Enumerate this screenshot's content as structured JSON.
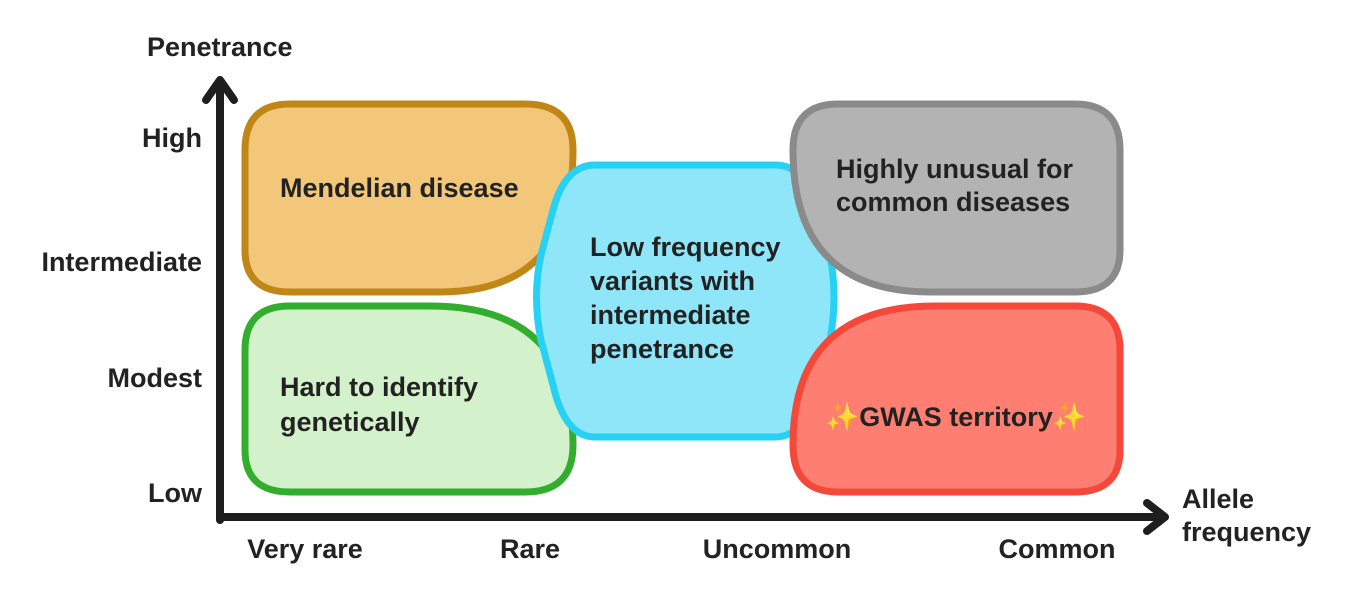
{
  "y_axis": {
    "title": "Penetrance",
    "ticks": [
      "High",
      "Intermediate",
      "Modest",
      "Low"
    ]
  },
  "x_axis": {
    "title_lines": [
      "Allele",
      "frequency"
    ],
    "ticks": [
      "Very rare",
      "Rare",
      "Uncommon",
      "Common"
    ]
  },
  "regions": {
    "mendelian": {
      "lines": [
        "Mendelian disease"
      ],
      "fill": "#f2c77a",
      "stroke": "#c08716"
    },
    "hard_to_identify": {
      "lines": [
        "Hard to identify",
        "genetically"
      ],
      "fill": "#d3f2cc",
      "stroke": "#33ad2e"
    },
    "low_frequency": {
      "lines": [
        "Low frequency",
        "variants with",
        "intermediate",
        "penetrance"
      ],
      "fill": "#8fe6f9",
      "stroke": "#27d1f4"
    },
    "highly_unusual": {
      "lines": [
        "Highly unusual for",
        "common diseases"
      ],
      "fill": "#b3b3b3",
      "stroke": "#8a8a8a"
    },
    "gwas": {
      "lines": [
        "GWAS territory"
      ],
      "sparkle": "✨",
      "fill": "#fe7f71",
      "stroke": "#f3483a"
    }
  },
  "axis_color": "#1e1e1e"
}
